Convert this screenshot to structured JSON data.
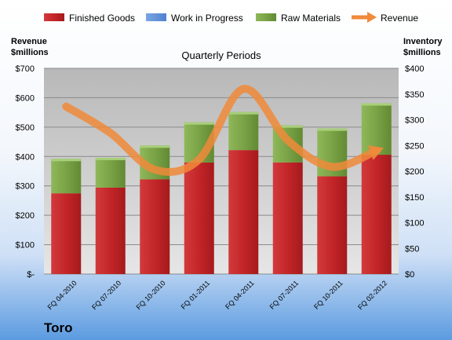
{
  "chart_data": {
    "type": "bar",
    "title": "Quarterly Periods",
    "company": "Toro",
    "categories": [
      "FQ 04-2010",
      "FQ 07-2010",
      "FQ 10-2010",
      "FQ 01-2011",
      "FQ 04-2011",
      "FQ 07-2011",
      "FQ 10-2011",
      "FQ 02-2012"
    ],
    "series": [
      {
        "name": "Finished Goods",
        "axis": "right",
        "color": "#c0282b",
        "values": [
          157,
          168,
          184,
          217,
          241,
          217,
          190,
          232
        ]
      },
      {
        "name": "Work in Progress",
        "axis": "right",
        "color": "#5b8fd8",
        "values": [
          0,
          0,
          0,
          0,
          0,
          0,
          0,
          0
        ]
      },
      {
        "name": "Raw Materials",
        "axis": "right",
        "color": "#7fa848",
        "values": [
          67,
          58,
          66,
          78,
          74,
          72,
          93,
          100
        ]
      }
    ],
    "line_series": {
      "name": "Revenue",
      "axis": "left",
      "color": "#f08a3a",
      "values": [
        570,
        480,
        355,
        390,
        630,
        455,
        365,
        420
      ]
    },
    "y_left": {
      "label": [
        "Revenue",
        "$millions"
      ],
      "min": 0,
      "max": 700,
      "ticks": [
        "$-",
        "$100",
        "$200",
        "$300",
        "$400",
        "$500",
        "$600",
        "$700"
      ]
    },
    "y_right": {
      "label": [
        "Inventory",
        "$millions"
      ],
      "min": 0,
      "max": 400,
      "ticks": [
        "$0",
        "$50",
        "$100",
        "$150",
        "$200",
        "$250",
        "$300",
        "$350",
        "$400"
      ]
    },
    "grid": true,
    "legend": "top"
  }
}
